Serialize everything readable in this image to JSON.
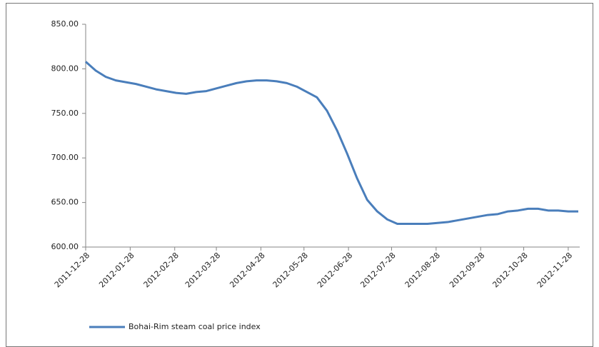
{
  "chart_data": {
    "type": "line",
    "x": [
      "2011-12-28",
      "2012-01-04",
      "2012-01-11",
      "2012-01-18",
      "2012-01-25",
      "2012-02-01",
      "2012-02-08",
      "2012-02-15",
      "2012-02-22",
      "2012-02-29",
      "2012-03-07",
      "2012-03-14",
      "2012-03-21",
      "2012-03-28",
      "2012-04-04",
      "2012-04-11",
      "2012-04-18",
      "2012-04-25",
      "2012-05-02",
      "2012-05-09",
      "2012-05-16",
      "2012-05-23",
      "2012-05-30",
      "2012-06-06",
      "2012-06-13",
      "2012-06-20",
      "2012-06-27",
      "2012-07-04",
      "2012-07-11",
      "2012-07-18",
      "2012-07-25",
      "2012-08-01",
      "2012-08-08",
      "2012-08-15",
      "2012-08-22",
      "2012-08-29",
      "2012-09-05",
      "2012-09-12",
      "2012-09-19",
      "2012-09-26",
      "2012-10-03",
      "2012-10-10",
      "2012-10-17",
      "2012-10-24",
      "2012-10-31",
      "2012-11-07",
      "2012-11-14",
      "2012-11-21",
      "2012-11-28",
      "2012-12-05"
    ],
    "series": [
      {
        "name": "Bohai-Rim steam coal price index",
        "color": "#4a7ebb",
        "values": [
          808,
          798,
          791,
          787,
          785,
          783,
          780,
          777,
          775,
          773,
          772,
          774,
          775,
          778,
          781,
          784,
          786,
          787,
          787,
          786,
          784,
          780,
          774,
          768,
          753,
          731,
          705,
          677,
          653,
          640,
          631,
          626,
          626,
          626,
          626,
          627,
          628,
          630,
          632,
          634,
          636,
          637,
          640,
          641,
          643,
          643,
          641,
          641,
          640,
          640
        ]
      }
    ],
    "xlim": [
      "2011-12-28",
      "2012-12-05"
    ],
    "xticks": [
      "2011-12-28",
      "2012-01-28",
      "2012-02-28",
      "2012-03-28",
      "2012-04-28",
      "2012-05-28",
      "2012-06-28",
      "2012-07-28",
      "2012-08-28",
      "2012-09-28",
      "2012-10-28",
      "2012-11-28"
    ],
    "ylim": [
      600,
      850
    ],
    "yticks": [
      {
        "value": 600,
        "label": "600.00"
      },
      {
        "value": 650,
        "label": "650.00"
      },
      {
        "value": 700,
        "label": "700.00"
      },
      {
        "value": 750,
        "label": "750.00"
      },
      {
        "value": 800,
        "label": "800.00"
      },
      {
        "value": 850,
        "label": "850.00"
      }
    ],
    "grid": false,
    "legend": "bottom-left"
  }
}
